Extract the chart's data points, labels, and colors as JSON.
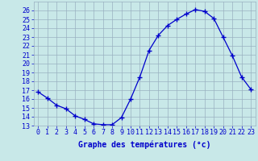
{
  "hours": [
    0,
    1,
    2,
    3,
    4,
    5,
    6,
    7,
    8,
    9,
    10,
    11,
    12,
    13,
    14,
    15,
    16,
    17,
    18,
    19,
    20,
    21,
    22,
    23
  ],
  "temperatures": [
    16.8,
    16.1,
    15.3,
    14.9,
    14.1,
    13.7,
    13.2,
    13.1,
    13.1,
    13.9,
    16.0,
    18.5,
    21.5,
    23.2,
    24.3,
    25.0,
    25.6,
    26.1,
    25.9,
    25.1,
    23.0,
    20.9,
    18.5,
    17.1
  ],
  "line_color": "#0000cc",
  "marker": "+",
  "bg_color": "#c8e8e8",
  "grid_color": "#9ab0c0",
  "xlabel": "Graphe des températures (°c)",
  "xlabel_color": "#0000cc",
  "tick_color": "#0000cc",
  "ylim_min": 13,
  "ylim_max": 27,
  "yticks": [
    13,
    14,
    15,
    16,
    17,
    18,
    19,
    20,
    21,
    22,
    23,
    24,
    25,
    26
  ],
  "xlim_min": -0.5,
  "xlim_max": 23.5,
  "tick_fontsize": 6,
  "xlabel_fontsize": 7
}
